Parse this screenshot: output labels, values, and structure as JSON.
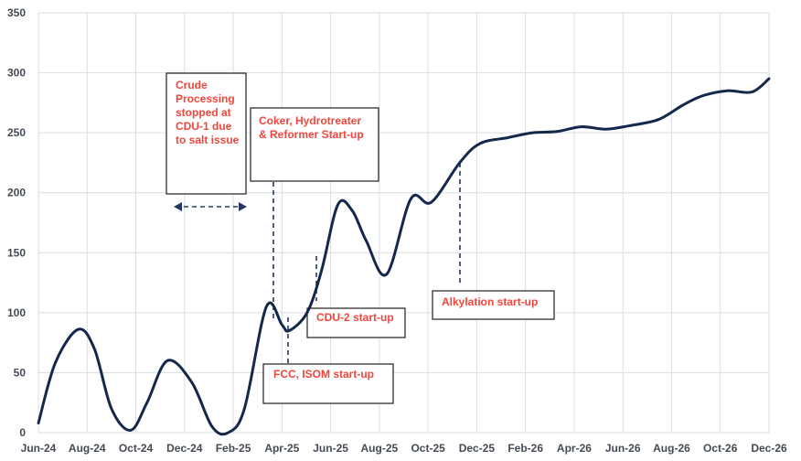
{
  "chart_data": {
    "type": "line",
    "title": "",
    "xlabel": "",
    "ylabel": "",
    "ylim": [
      0,
      350
    ],
    "yticks": [
      0,
      50,
      100,
      150,
      200,
      250,
      300,
      350
    ],
    "xlim": [
      "2024-06",
      "2026-12"
    ],
    "xtick_labels": [
      "Jun-24",
      "Aug-24",
      "Oct-24",
      "Dec-24",
      "Feb-25",
      "Apr-25",
      "Jun-25",
      "Aug-25",
      "Oct-25",
      "Dec-25",
      "Feb-26",
      "Apr-26",
      "Jun-26",
      "Aug-26",
      "Oct-26",
      "Dec-26"
    ],
    "grid": true,
    "legend": "none",
    "series": [
      {
        "color": "#14284b",
        "points": [
          [
            "2024-06-01",
            8
          ],
          [
            "2024-06-22",
            58
          ],
          [
            "2024-07-20",
            86
          ],
          [
            "2024-08-10",
            70
          ],
          [
            "2024-09-01",
            20
          ],
          [
            "2024-09-25",
            2
          ],
          [
            "2024-10-15",
            25
          ],
          [
            "2024-11-10",
            60
          ],
          [
            "2024-12-10",
            42
          ],
          [
            "2025-01-05",
            5
          ],
          [
            "2025-01-25",
            0
          ],
          [
            "2025-02-15",
            20
          ],
          [
            "2025-03-12",
            105
          ],
          [
            "2025-04-01",
            90
          ],
          [
            "2025-04-10",
            85
          ],
          [
            "2025-05-02",
            100
          ],
          [
            "2025-05-20",
            135
          ],
          [
            "2025-06-10",
            190
          ],
          [
            "2025-06-28",
            185
          ],
          [
            "2025-07-15",
            160
          ],
          [
            "2025-08-10",
            132
          ],
          [
            "2025-09-10",
            195
          ],
          [
            "2025-10-05",
            192
          ],
          [
            "2025-11-10",
            225
          ],
          [
            "2025-12-05",
            241
          ],
          [
            "2026-01-10",
            246
          ],
          [
            "2026-02-10",
            250
          ],
          [
            "2026-03-10",
            251
          ],
          [
            "2026-04-10",
            255
          ],
          [
            "2026-05-10",
            253
          ],
          [
            "2026-06-10",
            256
          ],
          [
            "2026-07-15",
            261
          ],
          [
            "2026-08-15",
            273
          ],
          [
            "2026-09-10",
            281
          ],
          [
            "2026-10-10",
            285
          ],
          [
            "2026-11-10",
            284
          ],
          [
            "2026-12-01",
            295
          ]
        ]
      }
    ],
    "annotations": [
      {
        "lines": [
          "Crude",
          "Processing",
          "stopped at",
          "CDU-1 due",
          "to salt issue"
        ]
      },
      {
        "lines": [
          "Coker, Hydrotreater",
          "& Reformer Start-up"
        ]
      },
      {
        "lines": [
          "CDU-2 start-up"
        ]
      },
      {
        "lines": [
          "FCC, ISOM start-up"
        ]
      },
      {
        "lines": [
          "Alkylation start-up"
        ]
      }
    ]
  },
  "colors": {
    "line": "#14284b",
    "annotation_text": "#f0463c",
    "grid": "#d9dde3",
    "tick_text": "#444a55"
  }
}
